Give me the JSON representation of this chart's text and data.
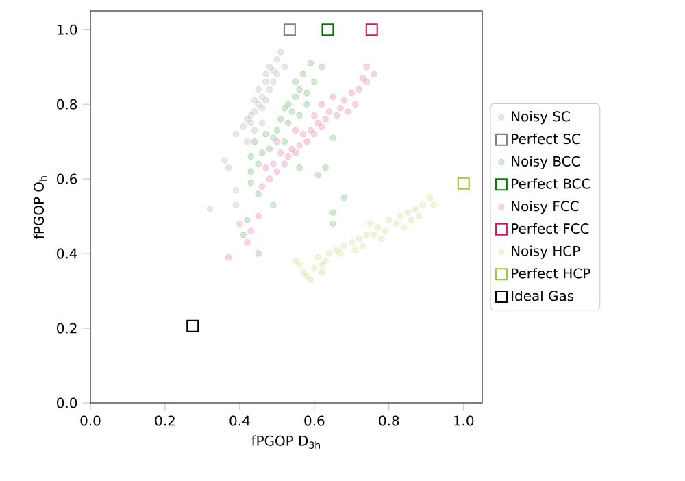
{
  "chart_data": {
    "type": "scatter",
    "xlabel": "fPGOP D$_{3h}$",
    "ylabel": "fPGOP O$_{h}$",
    "xlim": [
      0,
      1.05
    ],
    "ylim": [
      0,
      1.05
    ],
    "xticks": [
      {
        "value": 0,
        "label": "0.0"
      },
      0.2,
      0.4,
      0.6,
      0.8,
      {
        "value": 1,
        "label": "1.0"
      }
    ],
    "yticks": [
      {
        "value": 0,
        "label": "0.0"
      },
      0.2,
      0.4,
      0.6,
      0.8,
      {
        "value": 1,
        "label": "1.0"
      }
    ],
    "grid": false,
    "legend": "right",
    "series": [
      {
        "name": "Noisy SC",
        "color": "#808080",
        "marker": "circle",
        "x": [
          0.5,
          0.51,
          0.49,
          0.48,
          0.47,
          0.48,
          0.46,
          0.45,
          0.47,
          0.44,
          0.43,
          0.43,
          0.46,
          0.42,
          0.45,
          0.47,
          0.49,
          0.44,
          0.41,
          0.39,
          0.36,
          0.37,
          0.39,
          0.39,
          0.32,
          0.5,
          0.52,
          0.46,
          0.44,
          0.42
        ],
        "values": [
          0.92,
          0.94,
          0.89,
          0.9,
          0.86,
          0.84,
          0.82,
          0.8,
          0.81,
          0.78,
          0.77,
          0.75,
          0.75,
          0.76,
          0.84,
          0.88,
          0.86,
          0.73,
          0.74,
          0.72,
          0.65,
          0.63,
          0.57,
          0.53,
          0.52,
          0.88,
          0.9,
          0.79,
          0.81,
          0.7
        ]
      },
      {
        "name": "Perfect SC",
        "color": "#808080",
        "marker": "square",
        "x": [
          0.534
        ],
        "values": [
          1.0
        ]
      },
      {
        "name": "Noisy BCC",
        "color": "#008000",
        "marker": "circle",
        "x": [
          0.59,
          0.62,
          0.57,
          0.6,
          0.56,
          0.58,
          0.55,
          0.53,
          0.54,
          0.52,
          0.56,
          0.53,
          0.51,
          0.5,
          0.49,
          0.47,
          0.48,
          0.46,
          0.44,
          0.45,
          0.43,
          0.43,
          0.43,
          0.45,
          0.42,
          0.49,
          0.56,
          0.61,
          0.63,
          0.65,
          0.68,
          0.65,
          0.65,
          0.52,
          0.55,
          0.58,
          0.41,
          0.45
        ],
        "values": [
          0.91,
          0.9,
          0.88,
          0.86,
          0.84,
          0.83,
          0.82,
          0.8,
          0.78,
          0.79,
          0.77,
          0.75,
          0.76,
          0.73,
          0.71,
          0.72,
          0.68,
          0.67,
          0.7,
          0.64,
          0.66,
          0.62,
          0.59,
          0.56,
          0.49,
          0.53,
          0.63,
          0.61,
          0.63,
          0.71,
          0.55,
          0.51,
          0.48,
          0.7,
          0.86,
          0.8,
          0.45,
          0.4
        ]
      },
      {
        "name": "Perfect BCC",
        "color": "#008000",
        "marker": "square",
        "x": [
          0.636
        ],
        "values": [
          1.0
        ]
      },
      {
        "name": "Noisy FCC",
        "color": "#d6156d",
        "marker": "circle",
        "x": [
          0.76,
          0.74,
          0.73,
          0.72,
          0.7,
          0.71,
          0.68,
          0.67,
          0.66,
          0.64,
          0.63,
          0.62,
          0.61,
          0.6,
          0.59,
          0.58,
          0.57,
          0.56,
          0.55,
          0.54,
          0.53,
          0.52,
          0.51,
          0.5,
          0.49,
          0.48,
          0.47,
          0.46,
          0.65,
          0.69,
          0.6,
          0.55,
          0.5,
          0.45,
          0.43,
          0.42,
          0.4,
          0.37,
          0.74,
          0.62
        ],
        "values": [
          0.88,
          0.86,
          0.87,
          0.84,
          0.83,
          0.8,
          0.81,
          0.79,
          0.77,
          0.78,
          0.76,
          0.74,
          0.75,
          0.72,
          0.73,
          0.7,
          0.72,
          0.69,
          0.67,
          0.68,
          0.66,
          0.64,
          0.67,
          0.62,
          0.64,
          0.6,
          0.63,
          0.58,
          0.82,
          0.78,
          0.77,
          0.73,
          0.7,
          0.5,
          0.46,
          0.43,
          0.48,
          0.39,
          0.9,
          0.8
        ]
      },
      {
        "name": "Perfect FCC",
        "color": "#d6156d",
        "marker": "square",
        "x": [
          0.754
        ],
        "values": [
          1.0
        ]
      },
      {
        "name": "Noisy HCP",
        "color": "#9acd32",
        "marker": "circle",
        "x": [
          0.91,
          0.89,
          0.92,
          0.87,
          0.85,
          0.86,
          0.83,
          0.82,
          0.8,
          0.79,
          0.77,
          0.76,
          0.74,
          0.72,
          0.73,
          0.7,
          0.68,
          0.67,
          0.66,
          0.64,
          0.63,
          0.62,
          0.6,
          0.61,
          0.58,
          0.59,
          0.62,
          0.56,
          0.57,
          0.55,
          0.88,
          0.84,
          0.78,
          0.71,
          0.75
        ],
        "values": [
          0.55,
          0.53,
          0.53,
          0.52,
          0.51,
          0.49,
          0.5,
          0.48,
          0.49,
          0.46,
          0.47,
          0.45,
          0.45,
          0.44,
          0.42,
          0.43,
          0.42,
          0.4,
          0.41,
          0.4,
          0.38,
          0.37,
          0.36,
          0.39,
          0.34,
          0.33,
          0.35,
          0.37,
          0.35,
          0.38,
          0.5,
          0.47,
          0.44,
          0.41,
          0.48
        ]
      },
      {
        "name": "Perfect HCP",
        "color": "#9acd32",
        "marker": "square",
        "x": [
          1.0
        ],
        "values": [
          0.588
        ]
      },
      {
        "name": "Ideal Gas",
        "color": "#000000",
        "marker": "square",
        "x": [
          0.274
        ],
        "values": [
          0.206
        ]
      }
    ]
  }
}
